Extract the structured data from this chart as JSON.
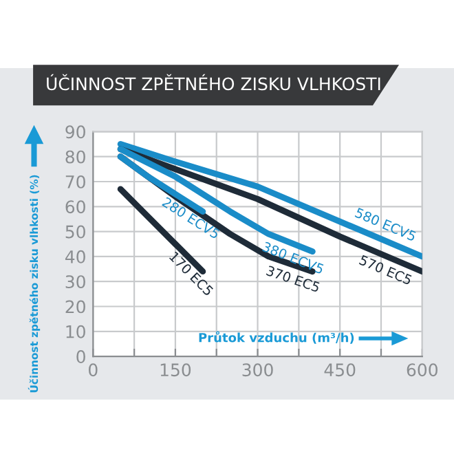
{
  "chart_data": {
    "type": "line",
    "title": "ÚČINNOST ZPĚTNÉHO ZISKU VLHKOSTI",
    "xlabel": "Průtok vzduchu (m³/h)",
    "ylabel": "Účinnost zpětného zisku vlhkosti (%)",
    "series": [
      {
        "name": "580 ECV5",
        "color": "#1a8cc8",
        "x": [
          50,
          150,
          300,
          450,
          600
        ],
        "values": [
          85,
          78,
          68,
          54,
          40
        ]
      },
      {
        "name": "570 EC5",
        "color": "#1e2b38",
        "x": [
          50,
          150,
          300,
          450,
          600
        ],
        "values": [
          83,
          75,
          63,
          48,
          34
        ]
      },
      {
        "name": "380 ECV5",
        "color": "#1a8cc8",
        "x": [
          50,
          150,
          250,
          320,
          400
        ],
        "values": [
          83,
          72,
          58,
          49,
          42
        ]
      },
      {
        "name": "370 EC5",
        "color": "#1e2b38",
        "x": [
          50,
          150,
          250,
          320,
          400
        ],
        "values": [
          80,
          64,
          49,
          40,
          34
        ]
      },
      {
        "name": "280 ECV5",
        "color": "#1a8cc8",
        "x": [
          50,
          100,
          150,
          200
        ],
        "values": [
          80,
          72,
          65,
          58
        ]
      },
      {
        "name": "170 EC5",
        "color": "#1e2b38",
        "x": [
          50,
          100,
          150,
          200
        ],
        "values": [
          67,
          56,
          45,
          34
        ]
      }
    ],
    "xlim": [
      0,
      600
    ],
    "ylim": [
      0,
      90
    ],
    "xticks": [
      0,
      {
        "value": 75,
        "label": null
      },
      150,
      {
        "value": 225,
        "label": null
      },
      300,
      {
        "value": 375,
        "label": null
      },
      450,
      {
        "value": 525,
        "label": null
      },
      600
    ],
    "yticks": [
      0,
      10,
      20,
      30,
      40,
      50,
      60,
      70,
      80,
      90
    ],
    "grid": true,
    "marker": "none",
    "line_style": "solid"
  }
}
